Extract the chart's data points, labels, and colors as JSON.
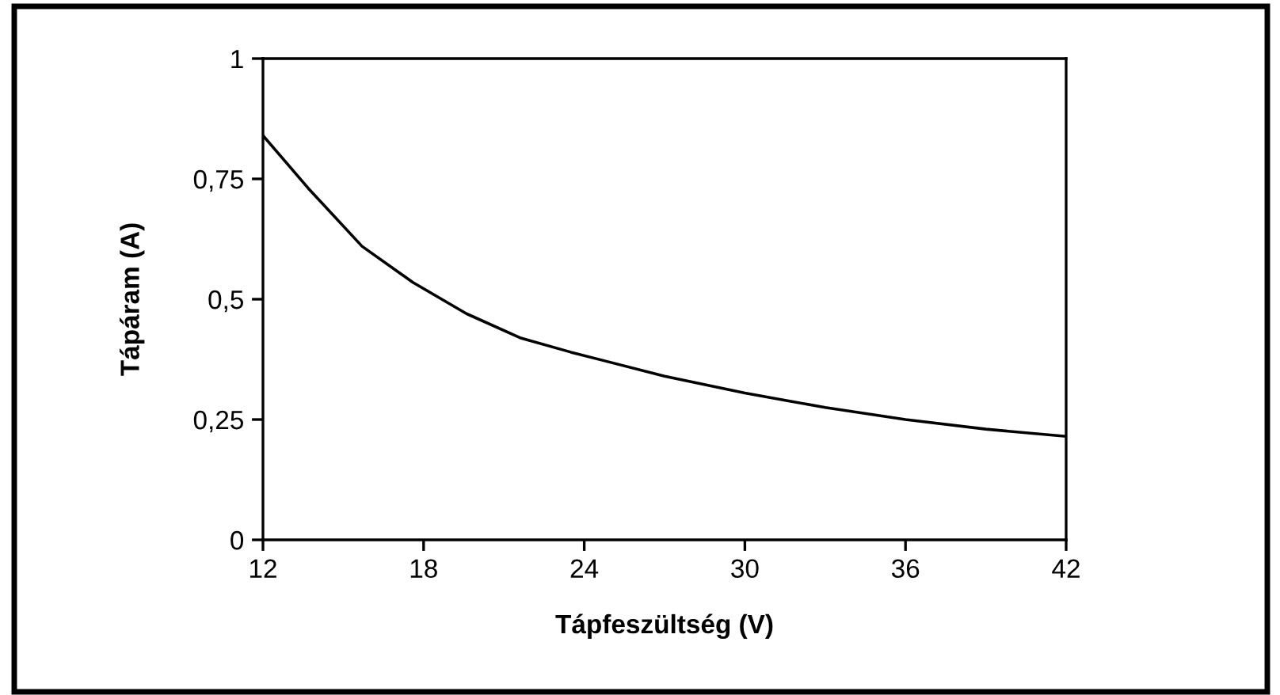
{
  "chart_data": {
    "type": "line",
    "xlabel": "Tápfeszültség (V)",
    "ylabel": "Tápáram (A)",
    "x": [
      12,
      13.7,
      15.7,
      17.6,
      19.6,
      21.6,
      23.5,
      27,
      30,
      33,
      36,
      39,
      42
    ],
    "series": [
      {
        "color": "#000000",
        "values": [
          0.84,
          0.73,
          0.61,
          0.535,
          0.47,
          0.42,
          0.39,
          0.34,
          0.305,
          0.275,
          0.25,
          0.23,
          0.215
        ]
      }
    ],
    "xlim": [
      12,
      42
    ],
    "xticks": [
      12,
      18,
      24,
      30,
      36,
      42
    ],
    "ylim": [
      0,
      1
    ],
    "yticks": [
      0,
      {
        "value": 0.25,
        "label": "0,25"
      },
      {
        "value": 0.5,
        "label": "0,5"
      },
      {
        "value": 0.75,
        "label": "0,75"
      },
      1
    ],
    "grid": false,
    "legend": false,
    "marker": "none",
    "line_style": "solid"
  }
}
